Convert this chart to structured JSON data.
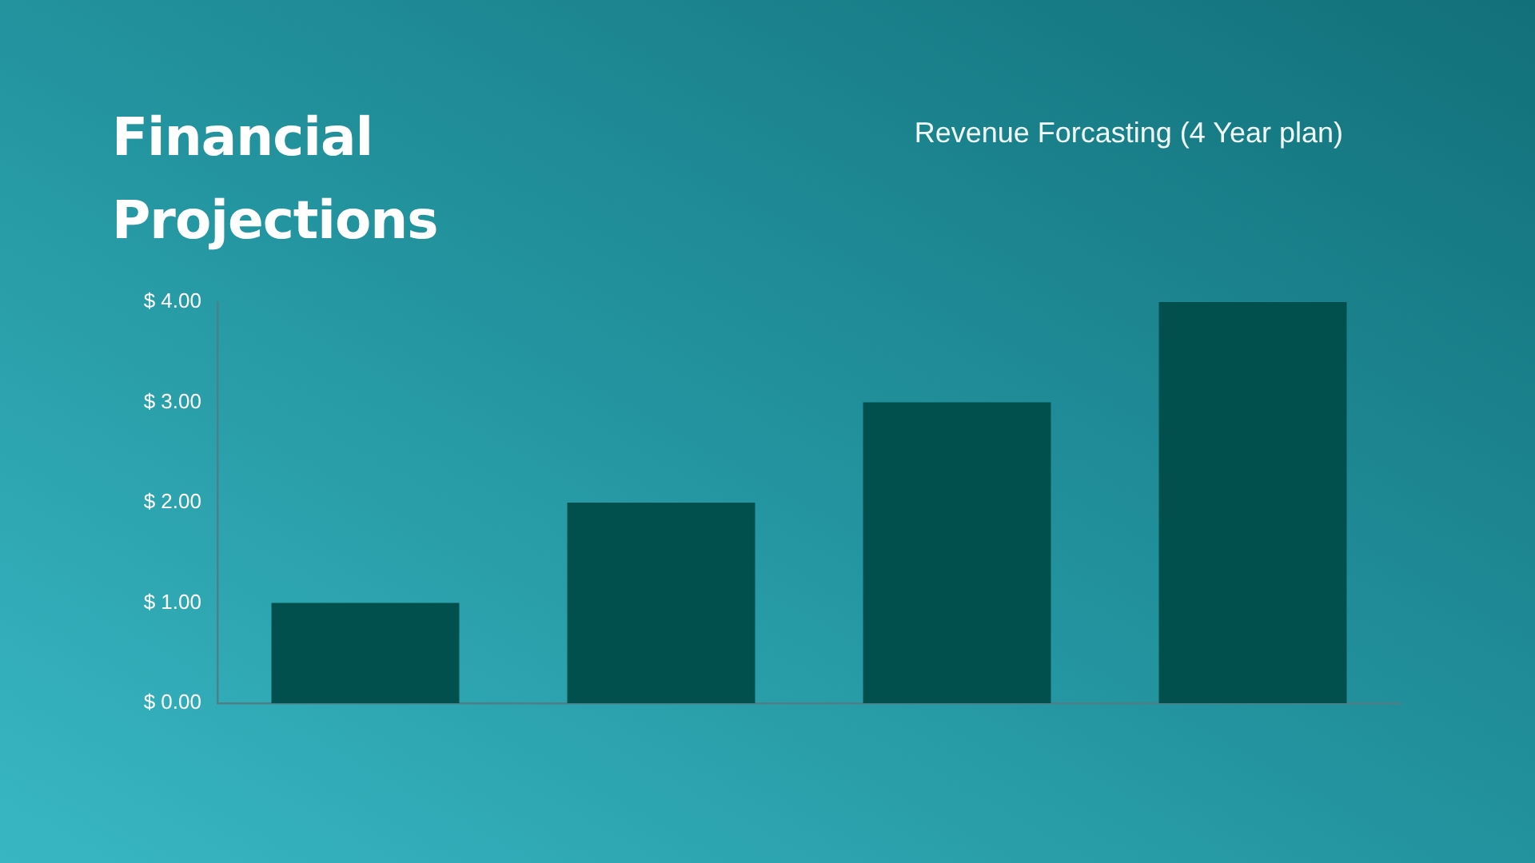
{
  "chart_data": {
    "type": "bar",
    "title": "Financial Projections",
    "subtitle": "Revenue Forcasting (4 Year plan)",
    "categories": [
      null,
      null,
      null,
      null
    ],
    "values": [
      1,
      2,
      3,
      4
    ],
    "color": "#01504d",
    "ylim": [
      0,
      4
    ],
    "yticks": [
      {
        "value": 0,
        "label": "$ 0.00"
      },
      {
        "value": 1,
        "label": "$ 1.00"
      },
      {
        "value": 2,
        "label": "$ 2.00"
      },
      {
        "value": 3,
        "label": "$ 3.00"
      },
      {
        "value": 4,
        "label": "$ 4.00"
      }
    ],
    "grid": false,
    "legend": false
  }
}
